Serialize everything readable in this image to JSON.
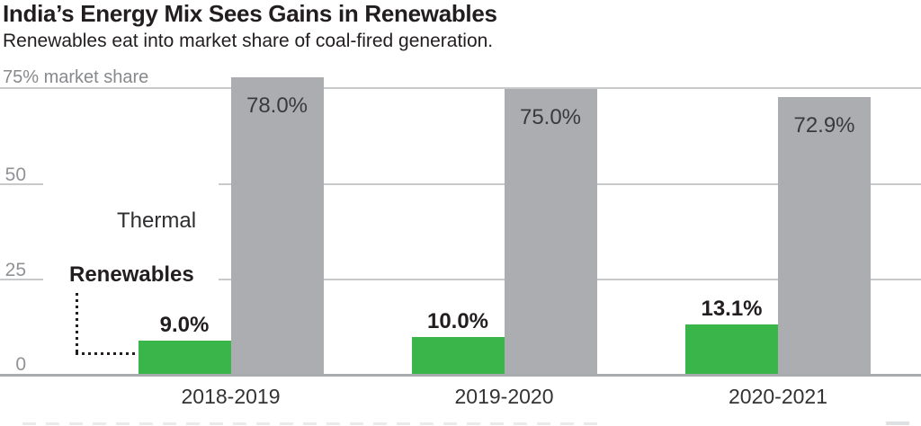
{
  "title": "India’s Energy Mix Sees Gains in Renewables",
  "subtitle": "Renewables eat into market share of coal-fired generation.",
  "axis": {
    "top_label": "75% market share",
    "tick_50": "50",
    "tick_25": "25",
    "tick_0": "0"
  },
  "legend": {
    "thermal": "Thermal",
    "renewables": "Renewables"
  },
  "colors": {
    "renewables_green": "#3ab54a",
    "thermal_gray": "#abadb0",
    "gridline": "#c8c9cb",
    "baseline": "#a8aaad",
    "axis_text": "#909295",
    "text_dark": "#221e1f"
  },
  "chart_data": {
    "type": "bar",
    "title": "India’s Energy Mix Sees Gains in Renewables",
    "subtitle": "Renewables eat into market share of coal-fired generation.",
    "categories": [
      "2018-2019",
      "2019-2020",
      "2020-2021"
    ],
    "series": [
      {
        "name": "Renewables",
        "color": "#3ab54a",
        "values": [
          9.0,
          10.0,
          13.1
        ],
        "labels": [
          "9.0%",
          "10.0%",
          "13.1%"
        ]
      },
      {
        "name": "Thermal",
        "color": "#abadb0",
        "values": [
          78.0,
          75.0,
          72.9
        ],
        "labels": [
          "78.0%",
          "75.0%",
          "72.9%"
        ]
      }
    ],
    "ylabel": "75% market share",
    "ytick_values": [
      0,
      25,
      50,
      75
    ],
    "ylim": [
      0,
      80
    ],
    "grid": "horizontal",
    "legend_position": "inline-left-callout"
  }
}
